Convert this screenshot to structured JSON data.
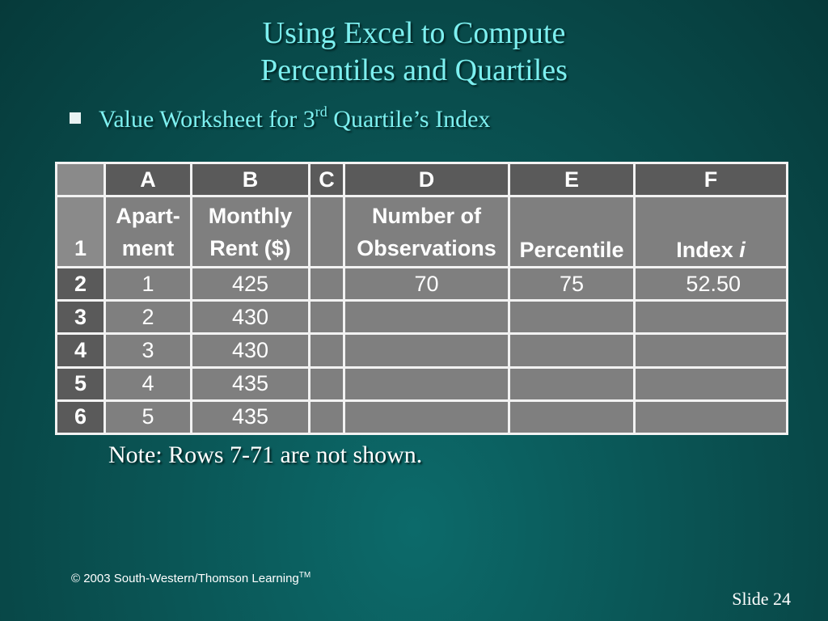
{
  "slide": {
    "title_line1": "Using Excel to Compute",
    "title_line2": "Percentiles and Quartiles",
    "bullet_text_before": "Value Worksheet for 3",
    "bullet_sup": "rd",
    "bullet_text_after": " Quartile’s Index",
    "note": "Note:  Rows 7-71 are not shown.",
    "copyright": "© 2003  South-Western/Thomson Learning",
    "copyright_tm": "TM",
    "slide_label": "Slide",
    "slide_number": "24"
  },
  "sheet": {
    "columns": [
      "A",
      "B",
      "C",
      "D",
      "E",
      "F"
    ],
    "header_row_num": "1",
    "labels": {
      "A": [
        "Apart-",
        "ment"
      ],
      "B": [
        "Monthly",
        "Rent ($)"
      ],
      "C": [
        "",
        ""
      ],
      "D": [
        "Number of",
        "Observations"
      ],
      "E": [
        "",
        "Percentile"
      ],
      "F_text": "Index ",
      "F_italic": "i"
    },
    "rows": [
      {
        "num": "2",
        "A": "1",
        "B": "425",
        "C": "",
        "D": "70",
        "E": "75",
        "F": "52.50"
      },
      {
        "num": "3",
        "A": "2",
        "B": "430",
        "C": "",
        "D": "",
        "E": "",
        "F": ""
      },
      {
        "num": "4",
        "A": "3",
        "B": "430",
        "C": "",
        "D": "",
        "E": "",
        "F": ""
      },
      {
        "num": "5",
        "A": "4",
        "B": "435",
        "C": "",
        "D": "",
        "E": "",
        "F": ""
      },
      {
        "num": "6",
        "A": "5",
        "B": "435",
        "C": "",
        "D": "",
        "E": "",
        "F": ""
      }
    ]
  },
  "colors": {
    "title": "#7df0f0",
    "cell_bg": "#7f7f7f",
    "header_bg": "#5a5a5a",
    "grid": "#f2f2f2"
  }
}
